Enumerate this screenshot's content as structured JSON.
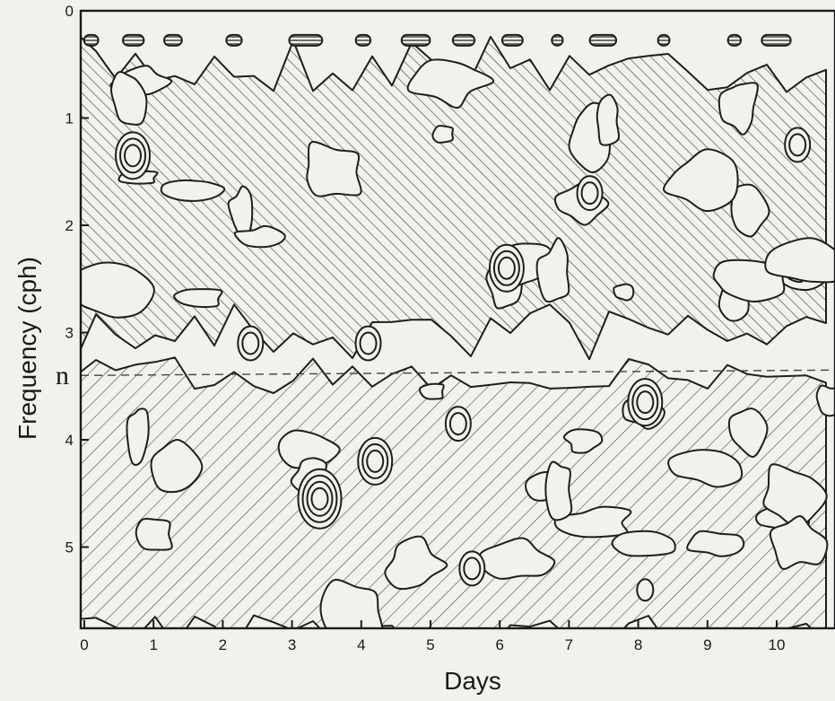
{
  "chart_data": {
    "type": "heatmap",
    "subtype": "contour plot with hatched regions",
    "xlabel": "Days",
    "ylabel": "Frequency (cph)",
    "x_ticks": [
      0,
      1,
      2,
      3,
      4,
      5,
      6,
      7,
      8,
      9,
      10
    ],
    "y_ticks": [
      0,
      1,
      2,
      3,
      4,
      5
    ],
    "xlim": [
      0,
      10.8
    ],
    "ylim": [
      0,
      5.8
    ],
    "y_inverted": true,
    "reference_line": {
      "label": "n",
      "frequency": 3.4,
      "style": "dashed"
    },
    "grid": false,
    "legend": "none",
    "colors": {
      "ink": "#1e1e1e",
      "background": "#f3f1ec"
    },
    "hatched_regions": [
      {
        "band": "low-frequency",
        "hatch": "dense diagonal",
        "freq_range": [
          0.5,
          3.0
        ],
        "days": [
          0,
          10.8
        ]
      },
      {
        "band": "high-frequency",
        "hatch": "sparse diagonal",
        "freq_range": [
          3.4,
          5.8
        ],
        "days": [
          0,
          10.8
        ]
      },
      {
        "band": "top strip",
        "hatch": "horizontal",
        "freq_range": [
          0.2,
          0.35
        ],
        "days": [
          0,
          10.8
        ]
      }
    ],
    "contours": [
      {
        "day": 4.2,
        "frequency": 4.2,
        "rings": 3
      },
      {
        "day": 3.4,
        "frequency": 4.55,
        "rings": 4
      },
      {
        "day": 6.1,
        "frequency": 2.4,
        "rings": 3
      },
      {
        "day": 8.1,
        "frequency": 3.65,
        "rings": 3
      },
      {
        "day": 5.4,
        "frequency": 3.85,
        "rings": 2
      },
      {
        "day": 0.7,
        "frequency": 1.35,
        "rings": 3
      },
      {
        "day": 10.3,
        "frequency": 1.25,
        "rings": 2
      },
      {
        "day": 7.3,
        "frequency": 1.7,
        "rings": 2
      },
      {
        "day": 5.6,
        "frequency": 5.2,
        "rings": 2
      },
      {
        "day": 8.1,
        "frequency": 5.4,
        "rings": 1
      },
      {
        "day": 4.1,
        "frequency": 3.1,
        "rings": 2
      },
      {
        "day": 2.4,
        "frequency": 3.1,
        "rings": 2
      }
    ]
  }
}
